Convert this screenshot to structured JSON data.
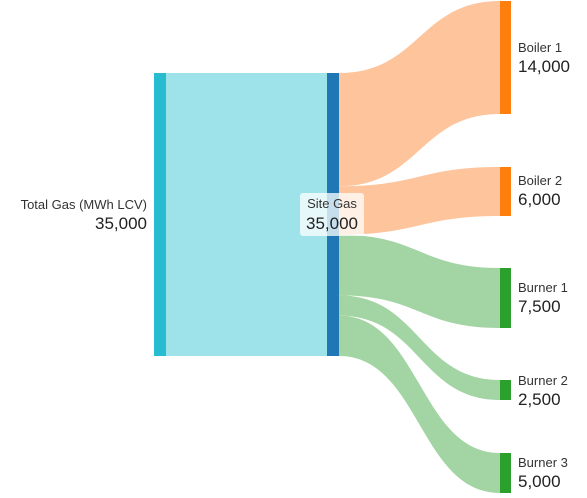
{
  "chart_data": {
    "type": "sankey",
    "nodes": [
      {
        "id": "total",
        "name": "Total Gas (MWh LCV)",
        "value": "35,000",
        "color": "#27bccf"
      },
      {
        "id": "site",
        "name": "Site Gas",
        "value": "35,000",
        "color": "#1f77b4"
      },
      {
        "id": "boiler1",
        "name": "Boiler 1",
        "value": "14,000",
        "color": "#ff7f0e"
      },
      {
        "id": "boiler2",
        "name": "Boiler 2",
        "value": "6,000",
        "color": "#ff7f0e"
      },
      {
        "id": "burner1",
        "name": "Burner 1",
        "value": "7,500",
        "color": "#2ca02c"
      },
      {
        "id": "burner2",
        "name": "Burner 2",
        "value": "2,500",
        "color": "#2ca02c"
      },
      {
        "id": "burner3",
        "name": "Burner 3",
        "value": "5,000",
        "color": "#2ca02c"
      }
    ],
    "links": [
      {
        "source": "total",
        "target": "site",
        "value": 35000,
        "color": "#9ee2ea"
      },
      {
        "source": "site",
        "target": "boiler1",
        "value": 14000,
        "color": "#fec49c"
      },
      {
        "source": "site",
        "target": "boiler2",
        "value": 6000,
        "color": "#fec49c"
      },
      {
        "source": "site",
        "target": "burner1",
        "value": 7500,
        "color": "#a3d4a3"
      },
      {
        "source": "site",
        "target": "burner2",
        "value": 2500,
        "color": "#a3d4a3"
      },
      {
        "source": "site",
        "target": "burner3",
        "value": 5000,
        "color": "#a3d4a3"
      }
    ]
  }
}
